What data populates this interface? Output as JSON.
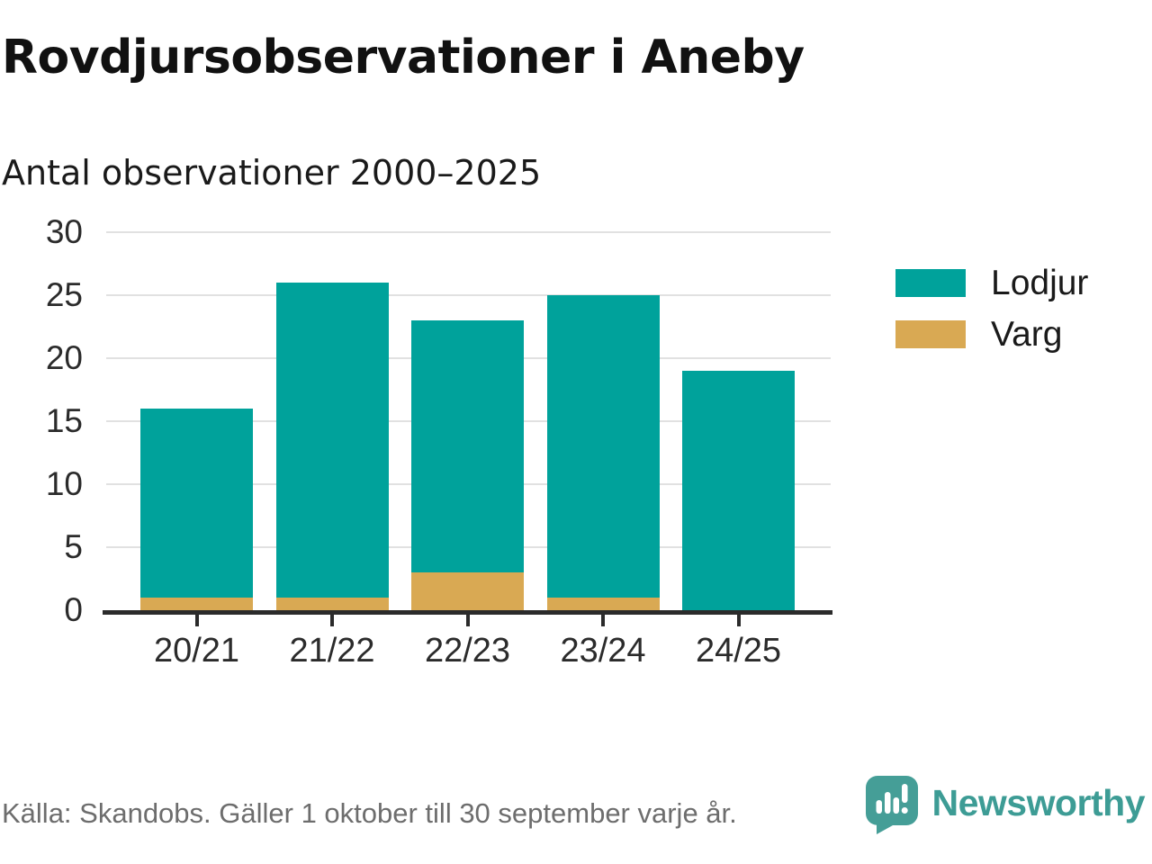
{
  "header": {
    "title": "Rovdjursobservationer i Aneby",
    "subtitle": "Antal observationer 2000–2025"
  },
  "chart_data": {
    "type": "bar",
    "stacked": true,
    "title": "Rovdjursobservationer i Aneby",
    "subtitle": "Antal observationer 2000–2025",
    "categories": [
      "20/21",
      "21/22",
      "22/23",
      "23/24",
      "24/25"
    ],
    "series": [
      {
        "name": "Varg",
        "color": "#d9a953",
        "values": [
          1,
          1,
          3,
          1,
          0
        ]
      },
      {
        "name": "Lodjur",
        "color": "#00a29b",
        "values": [
          15,
          25,
          20,
          24,
          19
        ]
      }
    ],
    "stack_order": "bottom-to-top",
    "totals": [
      16,
      26,
      23,
      25,
      19
    ],
    "xlabel": "",
    "ylabel": "",
    "ylim": [
      0,
      30
    ],
    "yticks": [
      0,
      5,
      10,
      15,
      20,
      25,
      30
    ],
    "grid": true,
    "legend": [
      "Lodjur",
      "Varg"
    ],
    "legend_position": "right"
  },
  "legend": {
    "items": [
      {
        "label": "Lodjur",
        "color": "#00a29b"
      },
      {
        "label": "Varg",
        "color": "#d9a953"
      }
    ]
  },
  "footer": {
    "source": "Källa: Skandobs. Gäller 1 oktober till 30 september varje år.",
    "brand": "Newsworthy"
  },
  "colors": {
    "lodjur": "#00a29b",
    "varg": "#d9a953",
    "gridline": "#e1e1e1",
    "axis": "#2b2b2b",
    "text": "#1a1a1a",
    "source_text": "#6d6d6d",
    "brand_teal": "#3d9c95",
    "logo_teal": "#459e97"
  }
}
